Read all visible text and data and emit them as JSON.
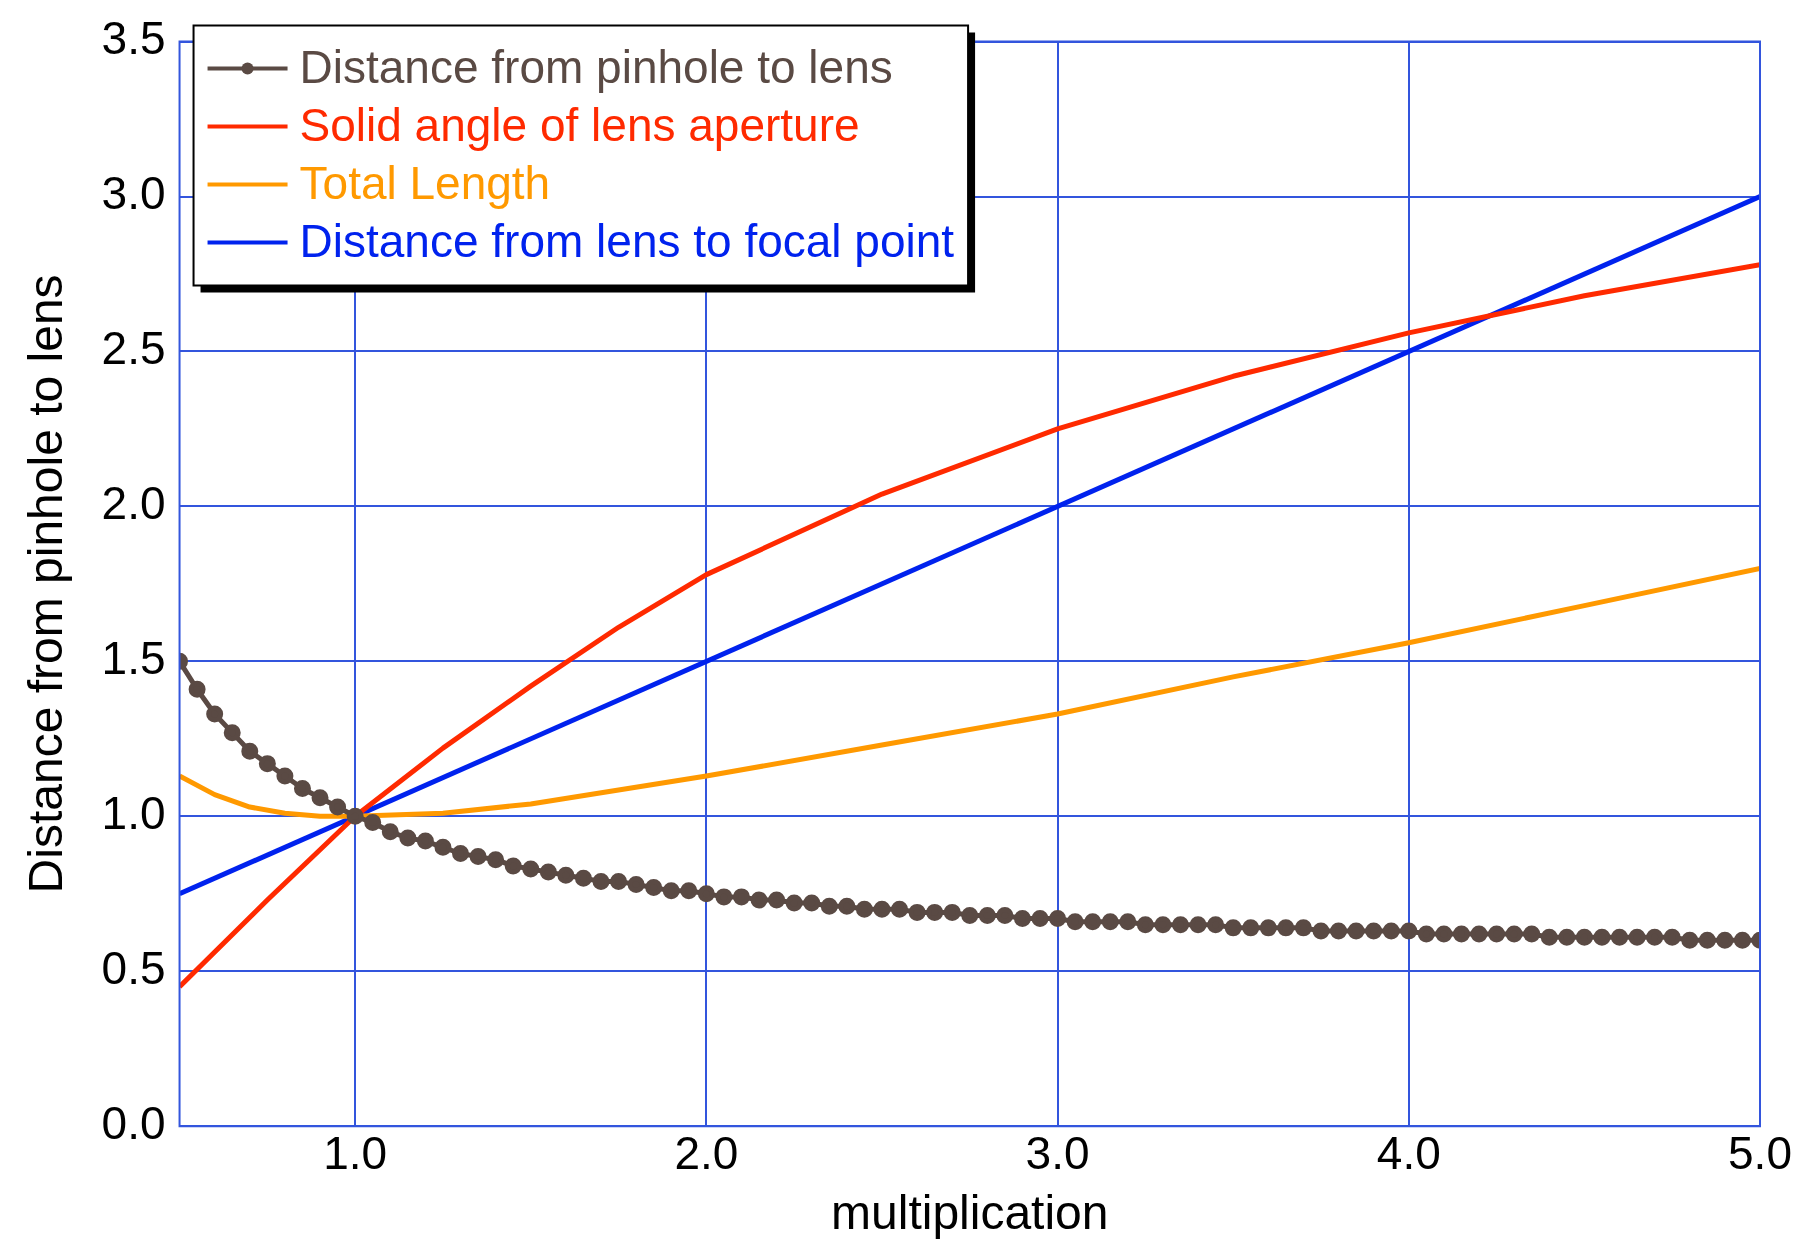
{
  "chart_data": {
    "type": "line",
    "xlabel": "multiplication",
    "ylabel": "Distance from pinhole to lens",
    "xlim": [
      0.5,
      5.0
    ],
    "ylim": [
      0,
      3.5
    ],
    "xticks": [
      {
        "value": 1,
        "label": "1.0"
      },
      {
        "value": 2,
        "label": "2.0"
      },
      {
        "value": 3,
        "label": "3.0"
      },
      {
        "value": 4,
        "label": "4.0"
      },
      {
        "value": 5,
        "label": "5.0"
      }
    ],
    "yticks": [
      {
        "value": 0,
        "label": "0.0"
      },
      {
        "value": 0.5,
        "label": "0.5"
      },
      {
        "value": 1,
        "label": "1.0"
      },
      {
        "value": 1.5,
        "label": "1.5"
      },
      {
        "value": 2,
        "label": "2.0"
      },
      {
        "value": 2.5,
        "label": "2.5"
      },
      {
        "value": 3,
        "label": "3.0"
      },
      {
        "value": 3.5,
        "label": "3.5"
      }
    ],
    "grid": true,
    "legend": "top left",
    "series": [
      {
        "name": "Distance from pinhole to lens",
        "color": "#5a4a44",
        "marker": "circle",
        "x": [
          0.5,
          0.55,
          0.6,
          0.65,
          0.7,
          0.75,
          0.8,
          0.85,
          0.9,
          0.95,
          1,
          1.05,
          1.1,
          1.15,
          1.2,
          1.25,
          1.3,
          1.35,
          1.4,
          1.45,
          1.5,
          1.55,
          1.6,
          1.65,
          1.7,
          1.75,
          1.8,
          1.85,
          1.9,
          1.95,
          2,
          2.05,
          2.1,
          2.15,
          2.2,
          2.25,
          2.3,
          2.35,
          2.4,
          2.45,
          2.5,
          2.55,
          2.6,
          2.65,
          2.7,
          2.75,
          2.8,
          2.85,
          2.9,
          2.95,
          3,
          3.05,
          3.1,
          3.15,
          3.2,
          3.25,
          3.3,
          3.35,
          3.4,
          3.45,
          3.5,
          3.55,
          3.6,
          3.65,
          3.7,
          3.75,
          3.8,
          3.85,
          3.9,
          3.95,
          4,
          4.05,
          4.1,
          4.15,
          4.2,
          4.25,
          4.3,
          4.35,
          4.4,
          4.45,
          4.5,
          4.55,
          4.6,
          4.65,
          4.7,
          4.75,
          4.8,
          4.85,
          4.9,
          4.95,
          5
        ],
        "values": [
          1.5,
          1.41,
          1.33,
          1.27,
          1.21,
          1.17,
          1.13,
          1.09,
          1.06,
          1.03,
          1,
          0.98,
          0.95,
          0.93,
          0.92,
          0.9,
          0.88,
          0.87,
          0.86,
          0.84,
          0.83,
          0.82,
          0.81,
          0.8,
          0.79,
          0.79,
          0.78,
          0.77,
          0.76,
          0.76,
          0.75,
          0.74,
          0.74,
          0.73,
          0.73,
          0.72,
          0.72,
          0.71,
          0.71,
          0.7,
          0.7,
          0.7,
          0.69,
          0.69,
          0.69,
          0.68,
          0.68,
          0.68,
          0.67,
          0.67,
          0.67,
          0.66,
          0.66,
          0.66,
          0.66,
          0.65,
          0.65,
          0.65,
          0.65,
          0.65,
          0.64,
          0.64,
          0.64,
          0.64,
          0.64,
          0.63,
          0.63,
          0.63,
          0.63,
          0.63,
          0.63,
          0.62,
          0.62,
          0.62,
          0.62,
          0.62,
          0.62,
          0.62,
          0.61,
          0.61,
          0.61,
          0.61,
          0.61,
          0.61,
          0.61,
          0.61,
          0.6,
          0.6,
          0.6,
          0.6,
          0.6
        ]
      },
      {
        "name": "Solid angle of lens aperture",
        "color": "#ff2a00",
        "marker": "none",
        "x": [
          0.5,
          0.75,
          1,
          1.25,
          1.5,
          1.75,
          2,
          2.5,
          3,
          3.5,
          4,
          4.5,
          5
        ],
        "values": [
          0.45,
          0.73,
          1,
          1.22,
          1.42,
          1.61,
          1.78,
          2.04,
          2.25,
          2.42,
          2.56,
          2.68,
          2.78
        ]
      },
      {
        "name": "Total Length",
        "color": "#ff9900",
        "marker": "none",
        "x": [
          0.5,
          0.6,
          0.7,
          0.8,
          0.9,
          1,
          1.25,
          1.5,
          2,
          2.5,
          3,
          3.5,
          4,
          4.5,
          5
        ],
        "values": [
          1.13,
          1.07,
          1.03,
          1.01,
          1.0,
          1,
          1.01,
          1.04,
          1.13,
          1.23,
          1.33,
          1.45,
          1.56,
          1.68,
          1.8
        ]
      },
      {
        "name": "Distance from lens to focal point",
        "color": "#0022ee",
        "marker": "none",
        "x": [
          0.5,
          5
        ],
        "values": [
          0.75,
          3
        ]
      }
    ]
  }
}
